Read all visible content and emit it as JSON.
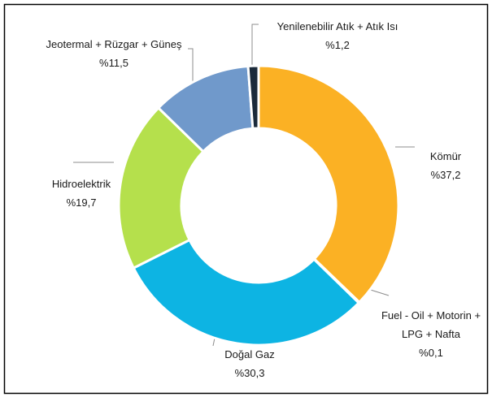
{
  "chart_data": {
    "type": "donut",
    "categories": [
      "Kömür",
      "Fuel - Oil + Motorin + LPG + Nafta",
      "Doğal Gaz",
      "Hidroelektrik",
      "Jeotermal + Rüzgar + Güneş",
      "Yenilenebilir Atık + Atık Isı"
    ],
    "values": [
      37.2,
      0.1,
      30.3,
      19.7,
      11.5,
      1.2
    ],
    "value_labels": [
      "%37,2",
      "%0,1",
      "%30,3",
      "%19,7",
      "%11,5",
      "%1,2"
    ],
    "colors": [
      "#fbb124",
      "#f2f2f2",
      "#0db4e3",
      "#b5e04c",
      "#7099cb",
      "#1b2a3a"
    ]
  }
}
